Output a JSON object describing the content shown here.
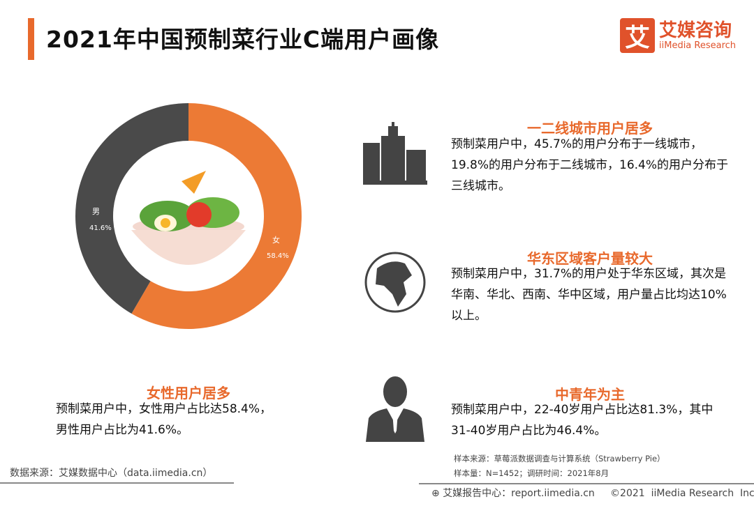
{
  "header": {
    "title": "2021年中国预制菜行业C端用户画像",
    "logo_mark": "艾",
    "logo_cn": "艾媒咨询",
    "logo_en": "iiMedia Research",
    "accent_color": "#e8692c"
  },
  "chart_data": {
    "type": "pie",
    "donut": true,
    "categories": [
      "女",
      "男"
    ],
    "values": [
      58.4,
      41.6
    ],
    "labels": [
      "58.4%",
      "41.6%"
    ],
    "colors": [
      "#ec7a35",
      "#4a4a4a"
    ]
  },
  "sections": {
    "female": {
      "title": "女性用户居多",
      "body": "预制菜用户中，女性用户占比达58.4%，男性用户占比为41.6%。",
      "icon": "salad-bowl"
    },
    "city": {
      "title": "一二线城市用户居多",
      "body": "预制菜用户中，45.7%的用户分布于一线城市，19.8%的用户分布于二线城市，16.4%的用户分布于三线城市。",
      "icon": "buildings-icon"
    },
    "region": {
      "title": "华东区域客户量较大",
      "body": "预制菜用户中，31.7%的用户处于华东区域，其次是华南、华北、西南、华中区域，用户量占比均达10%以上。",
      "icon": "globe-icon"
    },
    "age": {
      "title": "中青年为主",
      "body": "预制菜用户中，22-40岁用户占比达81.3%，其中31-40岁用户占比为46.4%。",
      "icon": "businessman-icon"
    }
  },
  "footer": {
    "data_source": "数据来源：艾媒数据中心（data.iimedia.cn）",
    "sample_source": "样本来源：草莓派数据调查与计算系统（Strawberry Pie）",
    "sample_size": "样本量：N=1452；调研时间：2021年8月",
    "report": "艾媒报告中心：report.iimedia.cn     ©2021  iiMedia Research  Inc"
  }
}
